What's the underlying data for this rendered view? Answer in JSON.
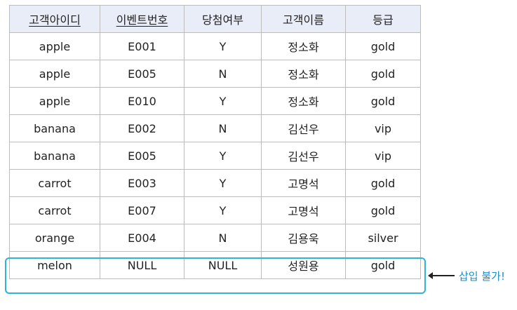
{
  "table": {
    "headers": [
      {
        "label": "고객아이디",
        "key": true
      },
      {
        "label": "이벤트번호",
        "key": true
      },
      {
        "label": "당첨여부",
        "key": false
      },
      {
        "label": "고객이름",
        "key": false
      },
      {
        "label": "등급",
        "key": false
      }
    ],
    "rows": [
      [
        "apple",
        "E001",
        "Y",
        "정소화",
        "gold"
      ],
      [
        "apple",
        "E005",
        "N",
        "정소화",
        "gold"
      ],
      [
        "apple",
        "E010",
        "Y",
        "정소화",
        "gold"
      ],
      [
        "banana",
        "E002",
        "N",
        "김선우",
        "vip"
      ],
      [
        "banana",
        "E005",
        "Y",
        "김선우",
        "vip"
      ],
      [
        "carrot",
        "E003",
        "Y",
        "고명석",
        "gold"
      ],
      [
        "carrot",
        "E007",
        "Y",
        "고명석",
        "gold"
      ],
      [
        "orange",
        "E004",
        "N",
        "김용욱",
        "silver"
      ],
      [
        "melon",
        "NULL",
        "NULL",
        "성원용",
        "gold"
      ]
    ]
  },
  "annotation": {
    "text": "삽입 불가!",
    "color": "#1a8fc7",
    "box_color": "#2fb3d6"
  }
}
